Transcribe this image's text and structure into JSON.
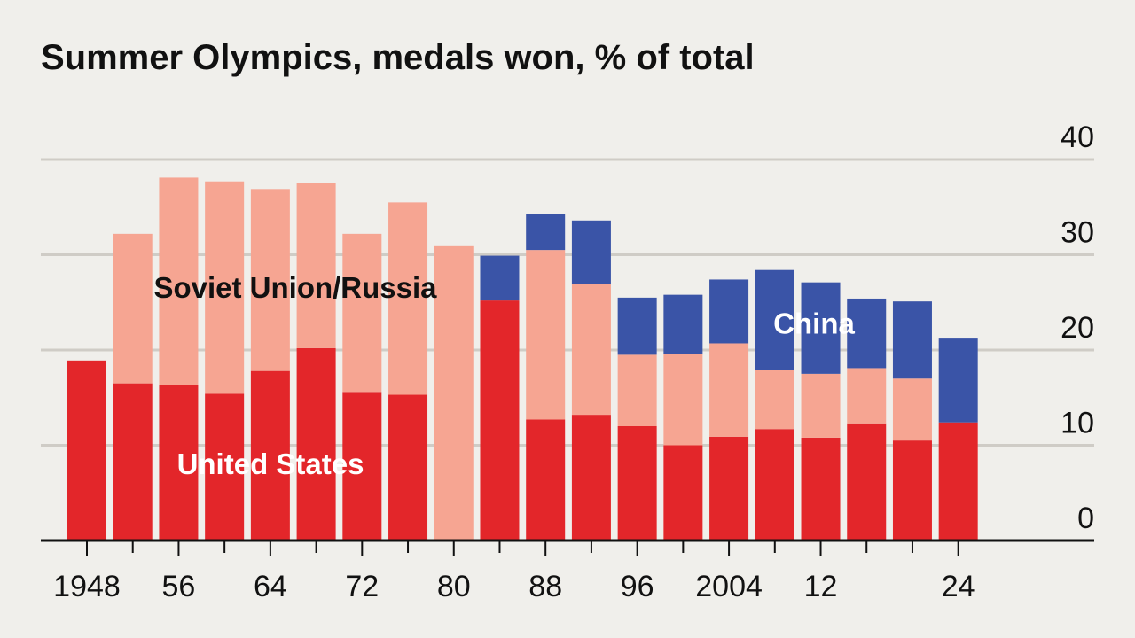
{
  "chart_data": {
    "type": "bar",
    "stacked": true,
    "title": "Summer Olympics, medals won, % of total",
    "xlabel": "",
    "ylabel": "",
    "ylim": [
      0,
      40
    ],
    "yticks": [
      0,
      10,
      20,
      30,
      40
    ],
    "y_axis_position": "right",
    "grid": true,
    "x_ticks": [
      {
        "year": 1948,
        "label": "1948"
      },
      {
        "year": 1956,
        "label": "56"
      },
      {
        "year": 1964,
        "label": "64"
      },
      {
        "year": 1972,
        "label": "72"
      },
      {
        "year": 1980,
        "label": "80"
      },
      {
        "year": 1988,
        "label": "88"
      },
      {
        "year": 1996,
        "label": "96"
      },
      {
        "year": 2004,
        "label": "2004"
      },
      {
        "year": 2012,
        "label": "12"
      },
      {
        "year": 2024,
        "label": "24"
      }
    ],
    "categories": [
      1948,
      1952,
      1956,
      1960,
      1964,
      1968,
      1972,
      1976,
      1980,
      1984,
      1988,
      1992,
      1996,
      2000,
      2004,
      2008,
      2012,
      2016,
      2020,
      2024
    ],
    "series": [
      {
        "name": "United States",
        "color": "#e3262a",
        "label_color": "#ffffff",
        "values": [
          18.9,
          16.5,
          16.3,
          15.4,
          17.8,
          20.2,
          15.6,
          15.3,
          0,
          25.2,
          12.7,
          13.2,
          12.0,
          10.0,
          10.9,
          11.7,
          10.8,
          12.3,
          10.5,
          12.4
        ]
      },
      {
        "name": "Soviet Union/Russia",
        "color": "#f6a592",
        "label_color": "#111111",
        "values": [
          0,
          15.7,
          21.8,
          22.3,
          19.1,
          17.3,
          16.6,
          20.2,
          30.9,
          0,
          17.8,
          13.7,
          7.5,
          9.6,
          9.8,
          6.2,
          6.7,
          5.8,
          6.5,
          0
        ]
      },
      {
        "name": "China",
        "color": "#3a54a7",
        "label_color": "#ffffff",
        "values": [
          0,
          0,
          0,
          0,
          0,
          0,
          0,
          0,
          0,
          4.7,
          3.8,
          6.7,
          6.0,
          6.2,
          6.7,
          10.5,
          9.6,
          7.3,
          8.1,
          8.8
        ]
      }
    ]
  }
}
